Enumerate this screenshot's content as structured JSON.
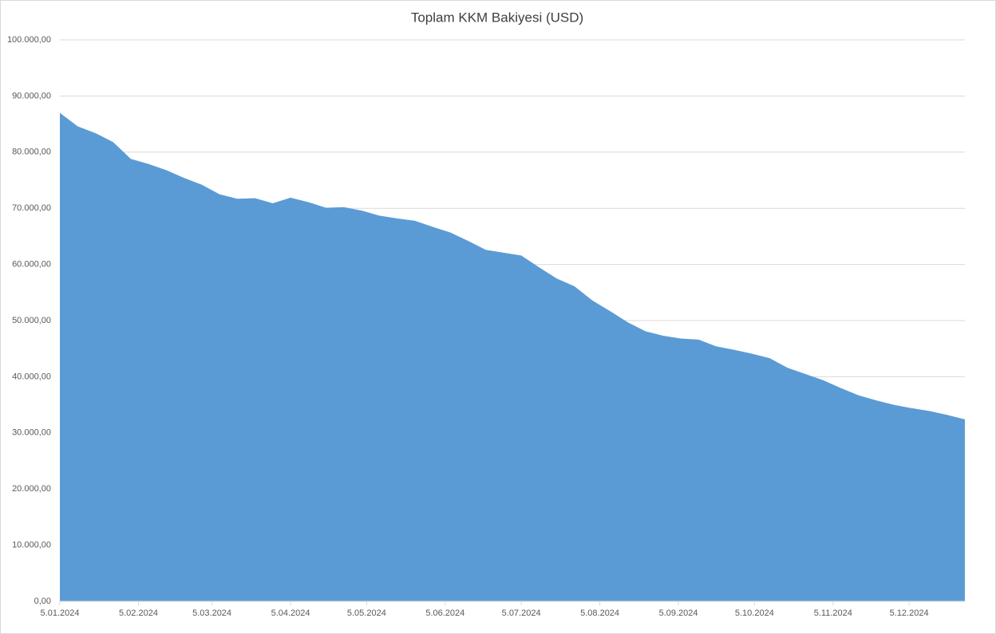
{
  "chart_data": {
    "type": "area",
    "title": "Toplam KKM Bakiyesi (USD)",
    "x": [
      "5.01.2024",
      "12.01.2024",
      "19.01.2024",
      "26.01.2024",
      "2.02.2024",
      "9.02.2024",
      "16.02.2024",
      "23.02.2024",
      "1.03.2024",
      "8.03.2024",
      "15.03.2024",
      "22.03.2024",
      "29.03.2024",
      "5.04.2024",
      "12.04.2024",
      "19.04.2024",
      "26.04.2024",
      "3.05.2024",
      "10.05.2024",
      "17.05.2024",
      "24.05.2024",
      "31.05.2024",
      "7.06.2024",
      "14.06.2024",
      "21.06.2024",
      "28.06.2024",
      "5.07.2024",
      "12.07.2024",
      "19.07.2024",
      "26.07.2024",
      "2.08.2024",
      "9.08.2024",
      "16.08.2024",
      "23.08.2024",
      "30.08.2024",
      "6.09.2024",
      "13.09.2024",
      "20.09.2024",
      "27.09.2024",
      "4.10.2024",
      "11.10.2024",
      "18.10.2024",
      "25.10.2024",
      "1.11.2024",
      "8.11.2024",
      "15.11.2024",
      "22.11.2024",
      "29.11.2024",
      "6.12.2024",
      "13.12.2024",
      "20.12.2024",
      "27.12.2024"
    ],
    "values": [
      87000,
      84600,
      83400,
      81800,
      78800,
      77900,
      76800,
      75400,
      74200,
      72500,
      71700,
      71800,
      70900,
      71900,
      71100,
      70100,
      70200,
      69600,
      68700,
      68200,
      67800,
      66700,
      65700,
      64200,
      62600,
      62100,
      61600,
      59500,
      57500,
      56100,
      53600,
      51700,
      49700,
      48100,
      47300,
      46800,
      46600,
      45400,
      44800,
      44100,
      43300,
      41600,
      40500,
      39400,
      38000,
      36700,
      35800,
      35000,
      34400,
      33900,
      33200,
      32400
    ],
    "color": "#5b9bd5",
    "xticks": [
      "5.01.2024",
      "5.02.2024",
      "5.03.2024",
      "5.04.2024",
      "5.05.2024",
      "5.06.2024",
      "5.07.2024",
      "5.08.2024",
      "5.09.2024",
      "5.10.2024",
      "5.11.2024",
      "5.12.2024"
    ],
    "ylim": [
      0,
      100000
    ],
    "yticks": [
      {
        "value": 0,
        "label": "0,00"
      },
      {
        "value": 10000,
        "label": "10.000,00"
      },
      {
        "value": 20000,
        "label": "20.000,00"
      },
      {
        "value": 30000,
        "label": "30.000,00"
      },
      {
        "value": 40000,
        "label": "40.000,00"
      },
      {
        "value": 50000,
        "label": "50.000,00"
      },
      {
        "value": 60000,
        "label": "60.000,00"
      },
      {
        "value": 70000,
        "label": "70.000,00"
      },
      {
        "value": 80000,
        "label": "80.000,00"
      },
      {
        "value": 90000,
        "label": "90.000,00"
      },
      {
        "value": 100000,
        "label": "100.000,00"
      }
    ],
    "grid": true
  }
}
